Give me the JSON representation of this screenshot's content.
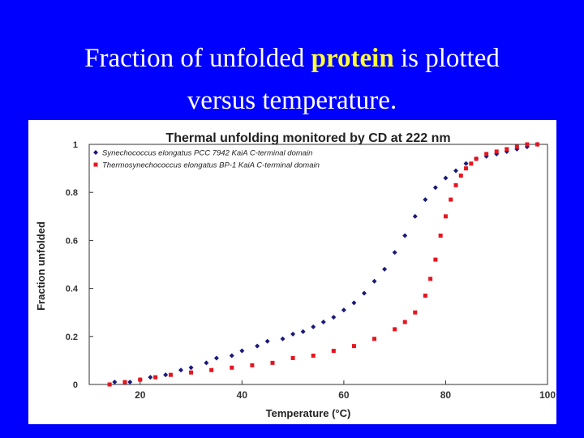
{
  "slide": {
    "title_line1_pre": "Fraction of unfolded ",
    "title_line1_bold": "protein",
    "title_line1_post": " is plotted",
    "title_line2": "versus temperature."
  },
  "colors": {
    "background": "#0000ff",
    "title_text": "#ffffff",
    "title_highlight": "#ffff33",
    "series_1": "#1a1a7a",
    "series_2": "#e8141e"
  },
  "chart_data": {
    "type": "scatter",
    "title": "Thermal unfolding monitored by CD at 222 nm",
    "xlabel": "Temperature (°C)",
    "ylabel": "Fraction unfolded",
    "xlim": [
      10,
      100
    ],
    "ylim": [
      0,
      1
    ],
    "xticks": [
      "20",
      "40",
      "60",
      "80",
      "100"
    ],
    "yticks": [
      "0",
      "0.2",
      "0.4",
      "0.6",
      "0.8",
      "1"
    ],
    "grid": false,
    "legend_position": "top-left",
    "series": [
      {
        "name": "Synechococcus elongatus PCC 7942 KaiA C-terminal domain",
        "marker": "diamond",
        "color": "#1a1a7a",
        "x": [
          15,
          18,
          20,
          22,
          25,
          28,
          30,
          33,
          35,
          38,
          40,
          43,
          45,
          48,
          50,
          52,
          54,
          56,
          58,
          60,
          62,
          64,
          66,
          68,
          70,
          72,
          74,
          76,
          78,
          80,
          82,
          84,
          86,
          88,
          90,
          92,
          94,
          96,
          98
        ],
        "y": [
          0.01,
          0.01,
          0.02,
          0.03,
          0.04,
          0.06,
          0.07,
          0.09,
          0.11,
          0.12,
          0.14,
          0.16,
          0.18,
          0.19,
          0.21,
          0.22,
          0.24,
          0.26,
          0.28,
          0.31,
          0.34,
          0.38,
          0.43,
          0.48,
          0.55,
          0.62,
          0.7,
          0.77,
          0.82,
          0.86,
          0.89,
          0.92,
          0.94,
          0.95,
          0.96,
          0.97,
          0.98,
          0.99,
          1.0
        ]
      },
      {
        "name": "Thermosynechococcus elongatus BP-1 KaiA C-terminal domain",
        "marker": "square",
        "color": "#e8141e",
        "x": [
          14,
          17,
          20,
          23,
          26,
          30,
          34,
          38,
          42,
          46,
          50,
          54,
          58,
          62,
          66,
          70,
          72,
          74,
          76,
          77,
          78,
          79,
          80,
          81,
          82,
          83,
          84,
          85,
          86,
          88,
          90,
          92,
          94,
          96,
          98
        ],
        "y": [
          0.0,
          0.01,
          0.02,
          0.03,
          0.04,
          0.05,
          0.06,
          0.07,
          0.08,
          0.09,
          0.11,
          0.12,
          0.14,
          0.16,
          0.19,
          0.23,
          0.26,
          0.3,
          0.37,
          0.44,
          0.52,
          0.62,
          0.7,
          0.77,
          0.83,
          0.87,
          0.9,
          0.92,
          0.94,
          0.96,
          0.97,
          0.98,
          0.99,
          1.0,
          1.0
        ]
      }
    ]
  }
}
